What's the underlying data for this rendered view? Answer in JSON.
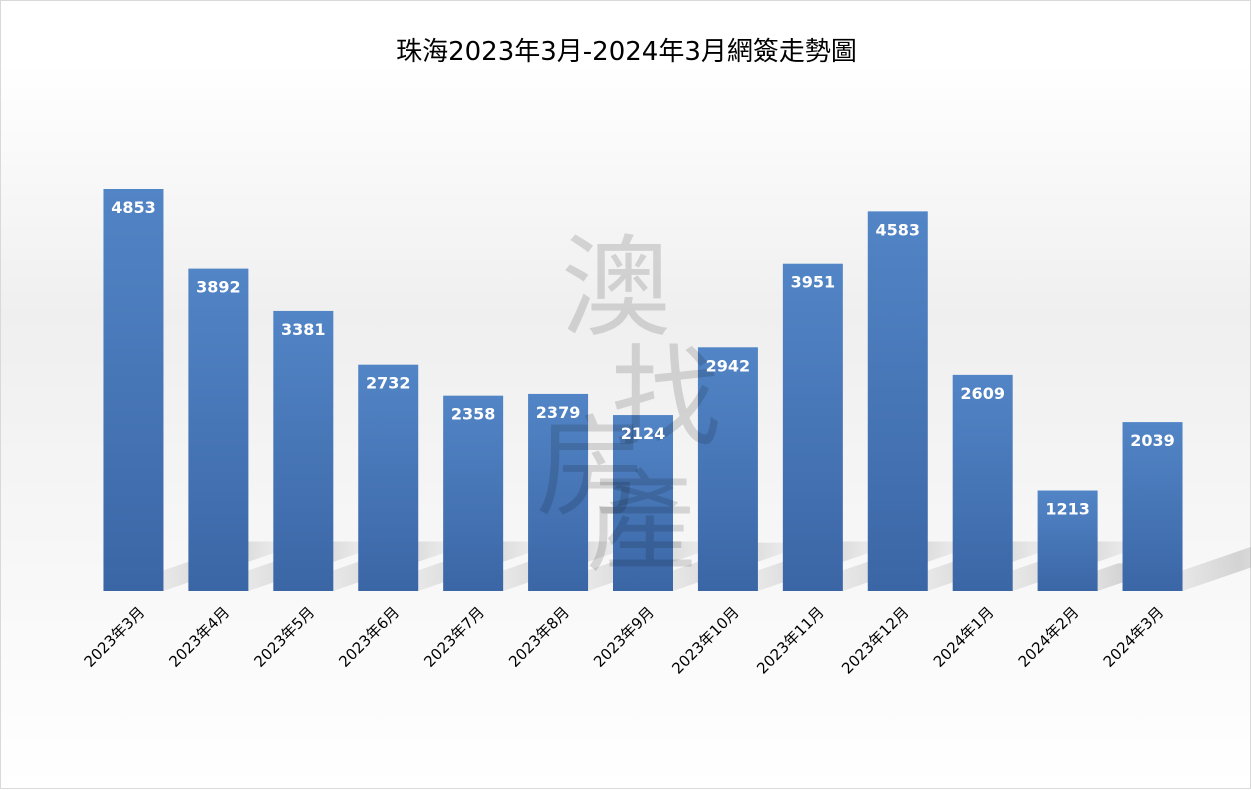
{
  "chart_data": {
    "type": "bar",
    "title": "珠海2023年3月-2024年3月網簽走勢圖",
    "categories": [
      "2023年3月",
      "2023年4月",
      "2023年5月",
      "2023年6月",
      "2023年7月",
      "2023年8月",
      "2023年9月",
      "2023年10月",
      "2023年11月",
      "2023年12月",
      "2024年1月",
      "2024年2月",
      "2024年3月"
    ],
    "values": [
      4853,
      3892,
      3381,
      2732,
      2358,
      2379,
      2124,
      2942,
      3951,
      4583,
      2609,
      1213,
      2039
    ],
    "xlabel": "",
    "ylabel": "",
    "ylim": [
      0,
      5000
    ],
    "grid": false,
    "legend": "none",
    "data_labels": true
  },
  "watermark": {
    "chars": [
      "澳",
      "找",
      "房",
      "產"
    ],
    "text": "澳找房產"
  },
  "colors": {
    "bar_top": "#5285c6",
    "bar_bottom": "#3b66a6",
    "data_label": "#ffffff",
    "title": "#000000"
  }
}
